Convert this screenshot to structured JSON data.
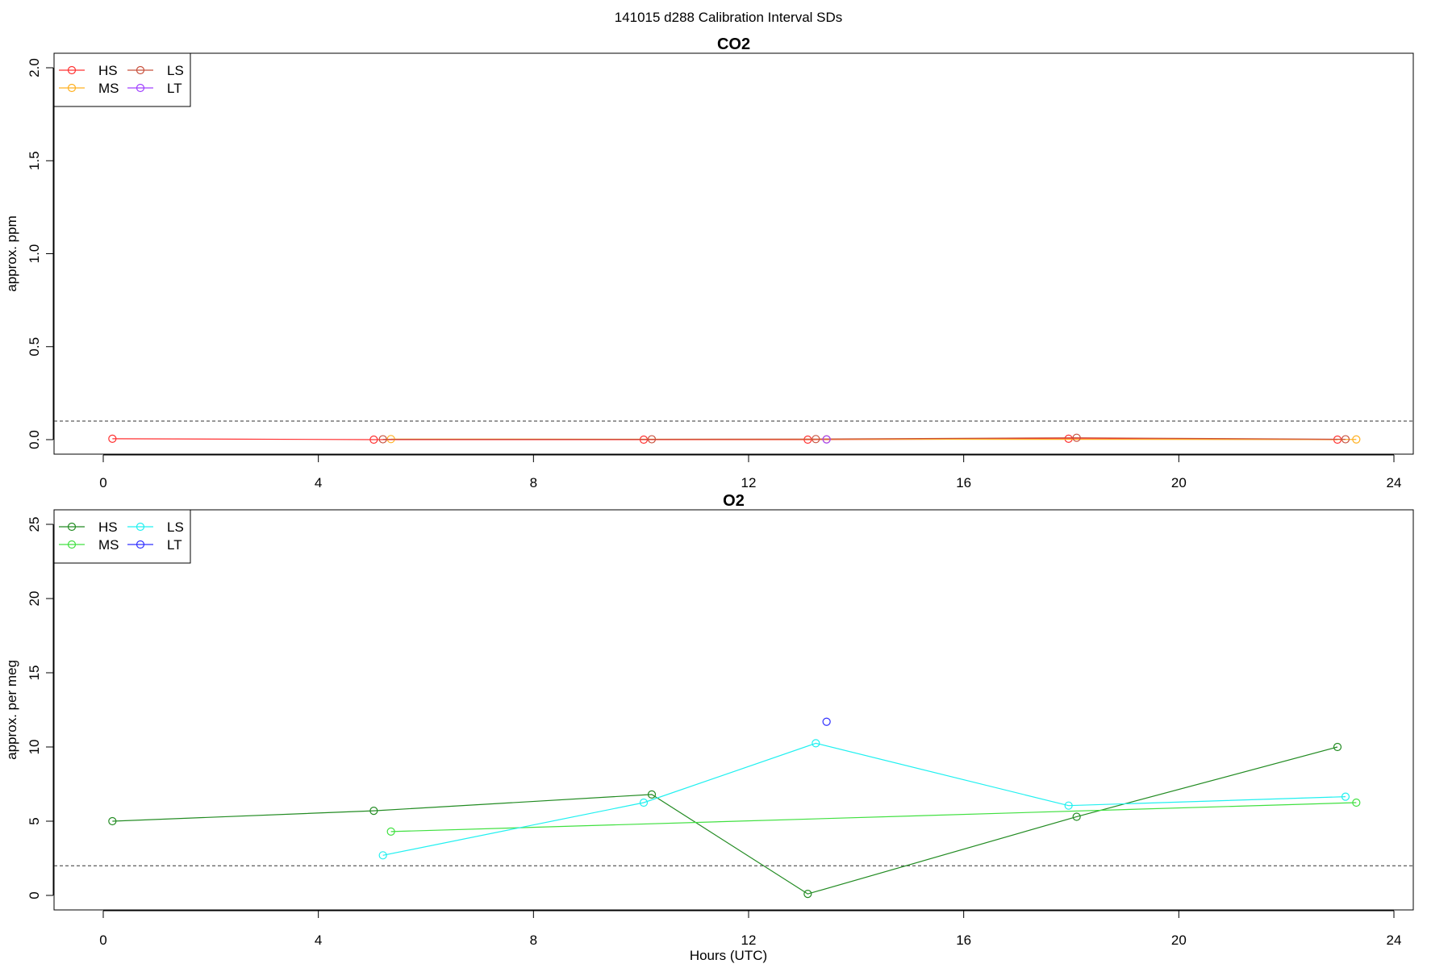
{
  "figure": {
    "title": "141015   d288   Calibration Interval SDs",
    "xlabel": "Hours (UTC)"
  },
  "chart_data": [
    {
      "type": "line",
      "title": "CO2",
      "xlabel": "",
      "ylabel": "approx. ppm",
      "xlim": [
        0,
        24
      ],
      "ylim": [
        0,
        2
      ],
      "xticks": [
        "0",
        "4",
        "8",
        "12",
        "16",
        "20",
        "24"
      ],
      "yticks": [
        "0.0",
        "0.5",
        "1.0",
        "1.5",
        "2.0"
      ],
      "threshold": 0.1,
      "legend_position": "top-left",
      "series": [
        {
          "name": "HS",
          "color": "#ff3030",
          "x": [
            0.17,
            5.03,
            10.05,
            13.1,
            17.95,
            22.95
          ],
          "y": [
            0.005,
            0.0,
            0.0,
            0.0,
            0.005,
            0.0
          ]
        },
        {
          "name": "MS",
          "color": "#ffb020",
          "x": [
            5.35,
            13.45,
            23.3
          ],
          "y": [
            0.003,
            0.002,
            0.001
          ]
        },
        {
          "name": "LS",
          "color": "#c8503c",
          "x": [
            5.2,
            10.2,
            13.25,
            18.1,
            23.1
          ],
          "y": [
            0.002,
            0.002,
            0.003,
            0.01,
            0.002
          ]
        },
        {
          "name": "LT",
          "color": "#a040ff",
          "x": [
            13.45
          ],
          "y": [
            0.001
          ]
        }
      ]
    },
    {
      "type": "line",
      "title": "O2",
      "xlabel": "Hours (UTC)",
      "ylabel": "approx. per meg",
      "xlim": [
        0,
        24
      ],
      "ylim": [
        0,
        25
      ],
      "xticks": [
        "0",
        "4",
        "8",
        "12",
        "16",
        "20",
        "24"
      ],
      "yticks": [
        "0",
        "5",
        "10",
        "15",
        "20",
        "25"
      ],
      "threshold": 2.0,
      "legend_position": "top-left",
      "series": [
        {
          "name": "HS",
          "color": "#228b22",
          "x": [
            0.17,
            5.03,
            10.2,
            13.1,
            18.1,
            22.95
          ],
          "y": [
            5.0,
            5.7,
            6.8,
            0.1,
            5.3,
            10.0
          ]
        },
        {
          "name": "MS",
          "color": "#40e040",
          "x": [
            5.35,
            23.3
          ],
          "y": [
            4.3,
            6.25
          ]
        },
        {
          "name": "LS",
          "color": "#20f0f0",
          "x": [
            5.2,
            10.05,
            13.25,
            17.95,
            23.1
          ],
          "y": [
            2.7,
            6.25,
            10.25,
            6.05,
            6.65
          ]
        },
        {
          "name": "LT",
          "color": "#3030ff",
          "x": [
            13.45
          ],
          "y": [
            11.7
          ]
        }
      ]
    }
  ]
}
